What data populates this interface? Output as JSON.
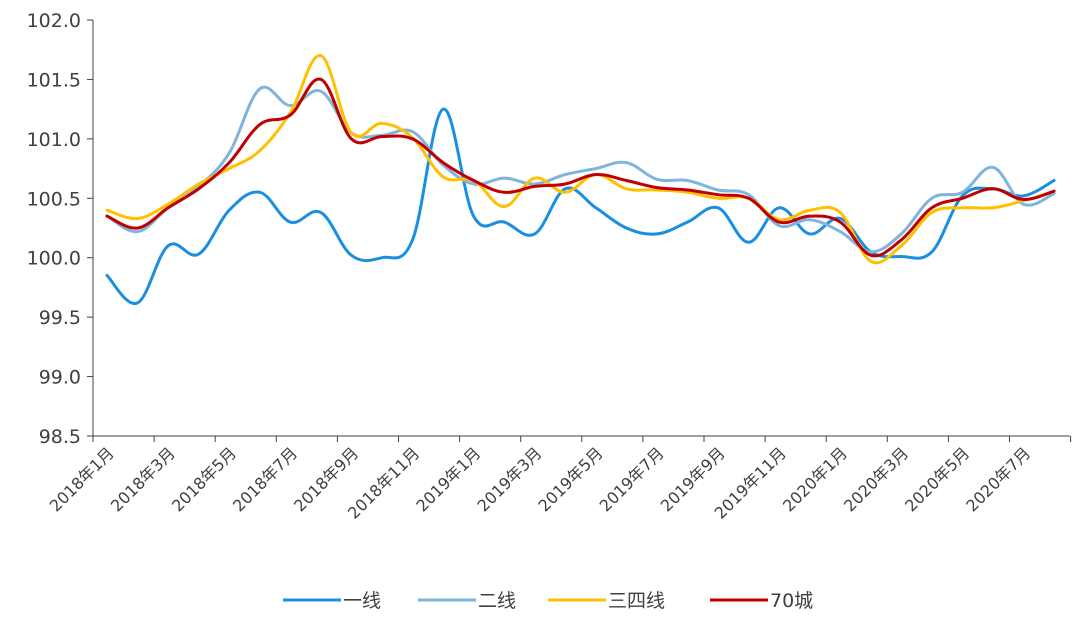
{
  "chart_data": {
    "type": "line",
    "title": "",
    "xlabel": "",
    "ylabel": "",
    "ylim": [
      98.5,
      102.0
    ],
    "yticks": [
      "98.5",
      "99.0",
      "99.5",
      "100.0",
      "100.5",
      "101.0",
      "101.5",
      "102.0"
    ],
    "ytick_values": [
      98.5,
      99.0,
      99.5,
      100.0,
      100.5,
      101.0,
      101.5,
      102.0
    ],
    "x": [
      "2018年1月",
      "2018年2月",
      "2018年3月",
      "2018年4月",
      "2018年5月",
      "2018年6月",
      "2018年7月",
      "2018年8月",
      "2018年9月",
      "2018年10月",
      "2018年11月",
      "2018年12月",
      "2019年1月",
      "2019年2月",
      "2019年3月",
      "2019年4月",
      "2019年5月",
      "2019年6月",
      "2019年7月",
      "2019年8月",
      "2019年9月",
      "2019年10月",
      "2019年11月",
      "2019年12月",
      "2020年1月",
      "2020年2月",
      "2020年3月",
      "2020年4月",
      "2020年5月",
      "2020年6月",
      "2020年7月",
      "2020年8月"
    ],
    "xtick_labels": [
      "2018年1月",
      "2018年3月",
      "2018年5月",
      "2018年7月",
      "2018年9月",
      "2018年11月",
      "2019年1月",
      "2019年3月",
      "2019年5月",
      "2019年7月",
      "2019年9月",
      "2019年11月",
      "2020年1月",
      "2020年3月",
      "2020年5月",
      "2020年7月"
    ],
    "legend_position": "bottom",
    "series": [
      {
        "name": "一线",
        "color": "#1a8fe0",
        "values": [
          99.85,
          99.62,
          100.1,
          100.03,
          100.4,
          100.55,
          100.3,
          100.38,
          100.02,
          100.0,
          100.15,
          101.25,
          100.35,
          100.3,
          100.2,
          100.58,
          100.42,
          100.25,
          100.2,
          100.3,
          100.42,
          100.13,
          100.42,
          100.2,
          100.33,
          100.05,
          100.01,
          100.05,
          100.52,
          100.58,
          100.52,
          100.65
        ]
      },
      {
        "name": "二线",
        "color": "#7fb4dd",
        "values": [
          100.35,
          100.22,
          100.42,
          100.6,
          100.88,
          101.42,
          101.28,
          101.4,
          101.05,
          101.03,
          101.06,
          100.78,
          100.62,
          100.67,
          100.62,
          100.7,
          100.75,
          100.8,
          100.66,
          100.65,
          100.57,
          100.53,
          100.27,
          100.32,
          100.22,
          100.05,
          100.2,
          100.5,
          100.55,
          100.76,
          100.45,
          100.54
        ]
      },
      {
        "name": "三四线",
        "color": "#ffc000",
        "values": [
          100.4,
          100.33,
          100.45,
          100.62,
          100.75,
          100.9,
          101.22,
          101.7,
          101.05,
          101.13,
          101.01,
          100.68,
          100.65,
          100.43,
          100.67,
          100.55,
          100.7,
          100.58,
          100.57,
          100.55,
          100.5,
          100.5,
          100.32,
          100.4,
          100.38,
          99.97,
          100.1,
          100.38,
          100.42,
          100.42,
          100.48,
          100.56
        ]
      },
      {
        "name": "70城",
        "color": "#c00000",
        "values": [
          100.35,
          100.25,
          100.42,
          100.58,
          100.8,
          101.12,
          101.2,
          101.5,
          101.0,
          101.02,
          101.0,
          100.8,
          100.65,
          100.55,
          100.6,
          100.62,
          100.7,
          100.65,
          100.59,
          100.57,
          100.53,
          100.5,
          100.3,
          100.35,
          100.3,
          100.02,
          100.15,
          100.42,
          100.5,
          100.58,
          100.49,
          100.56
        ]
      }
    ]
  }
}
